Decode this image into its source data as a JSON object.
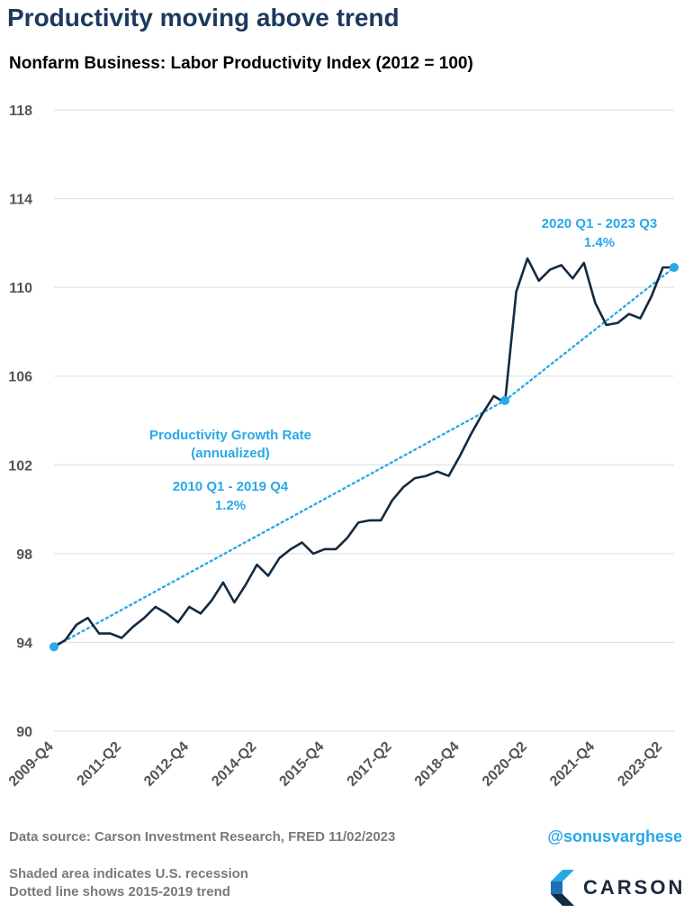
{
  "header": {
    "title": "Productivity moving above trend",
    "subtitle": "Nonfarm Business: Labor Productivity Index (2012 = 100)"
  },
  "footer": {
    "source": "Data source: Carson Investment Research, FRED  11/02/2023",
    "handle": "@sonusvarghese",
    "note1": "Shaded area indicates U.S. recession",
    "note2": "Dotted line shows 2015-2019 trend",
    "logo_text": "CARSON"
  },
  "colors": {
    "line": "#142a40",
    "trend": "#29a8e8",
    "grid": "#dddddd",
    "axis_text": "#555555",
    "title": "#1b3a5c"
  },
  "chart_data": {
    "type": "line",
    "title": "Nonfarm Business: Labor Productivity Index (2012 = 100)",
    "ylim": [
      90,
      118
    ],
    "yticks": [
      90,
      94,
      98,
      102,
      106,
      110,
      114,
      118
    ],
    "grid": true,
    "x": [
      "2009-Q4",
      "2010-Q1",
      "2010-Q2",
      "2010-Q3",
      "2010-Q4",
      "2011-Q1",
      "2011-Q2",
      "2011-Q3",
      "2011-Q4",
      "2012-Q1",
      "2012-Q2",
      "2012-Q3",
      "2012-Q4",
      "2013-Q1",
      "2013-Q2",
      "2013-Q3",
      "2013-Q4",
      "2014-Q1",
      "2014-Q2",
      "2014-Q3",
      "2014-Q4",
      "2015-Q1",
      "2015-Q2",
      "2015-Q3",
      "2015-Q4",
      "2016-Q1",
      "2016-Q2",
      "2016-Q3",
      "2016-Q4",
      "2017-Q1",
      "2017-Q2",
      "2017-Q3",
      "2017-Q4",
      "2018-Q1",
      "2018-Q2",
      "2018-Q3",
      "2018-Q4",
      "2019-Q1",
      "2019-Q2",
      "2019-Q3",
      "2019-Q4",
      "2020-Q1",
      "2020-Q2",
      "2020-Q3",
      "2020-Q4",
      "2021-Q1",
      "2021-Q2",
      "2021-Q3",
      "2021-Q4",
      "2022-Q1",
      "2022-Q2",
      "2022-Q3",
      "2022-Q4",
      "2023-Q1",
      "2023-Q2",
      "2023-Q3"
    ],
    "x_tick_labels": [
      "2009-Q4",
      "2011-Q2",
      "2012-Q4",
      "2014-Q2",
      "2015-Q4",
      "2017-Q2",
      "2018-Q4",
      "2020-Q2",
      "2021-Q4",
      "2023-Q2"
    ],
    "series": [
      {
        "values": [
          93.8,
          94.1,
          94.8,
          95.1,
          94.4,
          94.4,
          94.2,
          94.7,
          95.1,
          95.6,
          95.3,
          94.9,
          95.6,
          95.3,
          95.9,
          96.7,
          95.8,
          96.6,
          97.5,
          97.0,
          97.8,
          98.2,
          98.5,
          98.0,
          98.2,
          98.2,
          98.7,
          99.4,
          99.5,
          99.5,
          100.4,
          101.0,
          101.4,
          101.5,
          101.7,
          101.5,
          102.4,
          103.4,
          104.3,
          105.1,
          104.8,
          109.8,
          111.3,
          110.3,
          110.8,
          111.0,
          110.4,
          111.1,
          109.3,
          108.3,
          108.4,
          108.8,
          108.6,
          109.6,
          110.9,
          110.9
        ]
      }
    ],
    "trend_segments": [
      {
        "from_x": "2009-Q4",
        "from_y": 93.8,
        "to_x": "2019-Q4",
        "to_y": 104.9
      },
      {
        "from_x": "2019-Q4",
        "from_y": 104.9,
        "to_x": "2023-Q3",
        "to_y": 110.9
      }
    ],
    "annotations": {
      "growth_rate_title_1": "Productivity Growth Rate",
      "growth_rate_title_2": "(annualized)",
      "period1_label": "2010 Q1 - 2019 Q4",
      "period1_rate": "1.2%",
      "period2_label": "2020 Q1 - 2023 Q3",
      "period2_rate": "1.4%"
    }
  }
}
